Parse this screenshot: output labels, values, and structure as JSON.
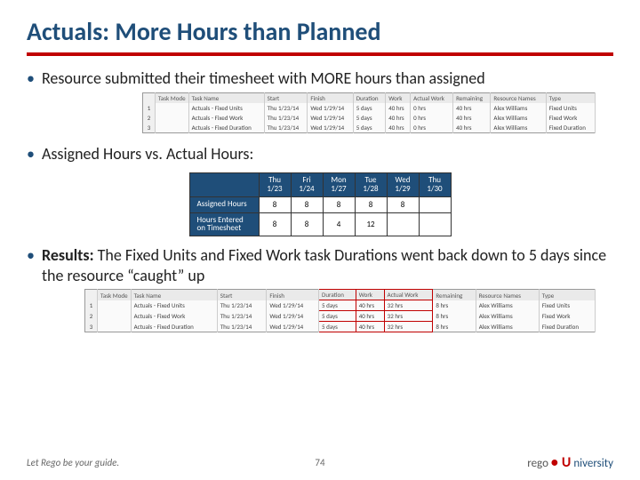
{
  "title": "Actuals: More Hours than Planned",
  "bullets": {
    "b1_prefix": "Resource submitted their timesheet with MORE hours than assigned",
    "b2": "Assigned Hours vs. Actual Hours:",
    "b3_label": "Results:",
    "b3_text": " The Fixed Units and Fixed Work task Durations went back down to 5 days since the resource “caught” up"
  },
  "gantt1": {
    "headers": [
      "",
      "Task Mode",
      "Task Name",
      "Start",
      "Finish",
      "Duration",
      "Work",
      "Actual Work",
      "Remaining",
      "Resource Names",
      "Type"
    ],
    "rows": [
      [
        "1",
        "",
        "Actuals - Fixed Units",
        "Thu 1/23/14",
        "Wed 1/29/14",
        "5 days",
        "40 hrs",
        "0 hrs",
        "40 hrs",
        "Alex Williams",
        "Fixed Units"
      ],
      [
        "2",
        "",
        "Actuals - Fixed Work",
        "Thu 1/23/14",
        "Wed 1/29/14",
        "5 days",
        "40 hrs",
        "0 hrs",
        "40 hrs",
        "Alex Williams",
        "Fixed Work"
      ],
      [
        "3",
        "",
        "Actuals - Fixed Duration",
        "Thu 1/23/14",
        "Wed 1/29/14",
        "5 days",
        "40 hrs",
        "0 hrs",
        "40 hrs",
        "Alex Williams",
        "Fixed Duration"
      ]
    ]
  },
  "hours": {
    "col_headers": [
      {
        "d": "Thu",
        "dt": "1/23"
      },
      {
        "d": "Fri",
        "dt": "1/24"
      },
      {
        "d": "Mon",
        "dt": "1/27"
      },
      {
        "d": "Tue",
        "dt": "1/28"
      },
      {
        "d": "Wed",
        "dt": "1/29"
      },
      {
        "d": "Thu",
        "dt": "1/30"
      }
    ],
    "rows": [
      {
        "label": "Assigned Hours",
        "vals": [
          "8",
          "8",
          "8",
          "8",
          "8",
          ""
        ]
      },
      {
        "label": "Hours Entered on Timesheet",
        "vals": [
          "8",
          "8",
          "4",
          "12",
          "",
          ""
        ]
      }
    ]
  },
  "gantt2": {
    "headers": [
      "",
      "Task Mode",
      "Task Name",
      "Start",
      "Finish",
      "Duration",
      "Work",
      "Actual Work",
      "Remaining",
      "Resource Names",
      "Type"
    ],
    "highlight_cols": [
      5,
      6,
      7
    ],
    "rows": [
      [
        "1",
        "",
        "Actuals - Fixed Units",
        "Thu 1/23/14",
        "Wed 1/29/14",
        "5 days",
        "40 hrs",
        "32 hrs",
        "8 hrs",
        "Alex Williams",
        "Fixed Units"
      ],
      [
        "2",
        "",
        "Actuals - Fixed Work",
        "Thu 1/23/14",
        "Wed 1/29/14",
        "5 days",
        "40 hrs",
        "32 hrs",
        "8 hrs",
        "Alex Williams",
        "Fixed Work"
      ],
      [
        "3",
        "",
        "Actuals - Fixed Duration",
        "Thu 1/23/14",
        "Wed 1/29/14",
        "5 days",
        "40 hrs",
        "32 hrs",
        "8 hrs",
        "Alex Williams",
        "Fixed Duration"
      ]
    ]
  },
  "footer": {
    "left": "Let Rego be your guide.",
    "page": "74",
    "logo1": "rego",
    "logo2": "U",
    "logo3": "niversity"
  },
  "colors": {
    "title": "#1f4e79",
    "accent": "#c00000",
    "table_header_bg": "#1f4e79"
  }
}
